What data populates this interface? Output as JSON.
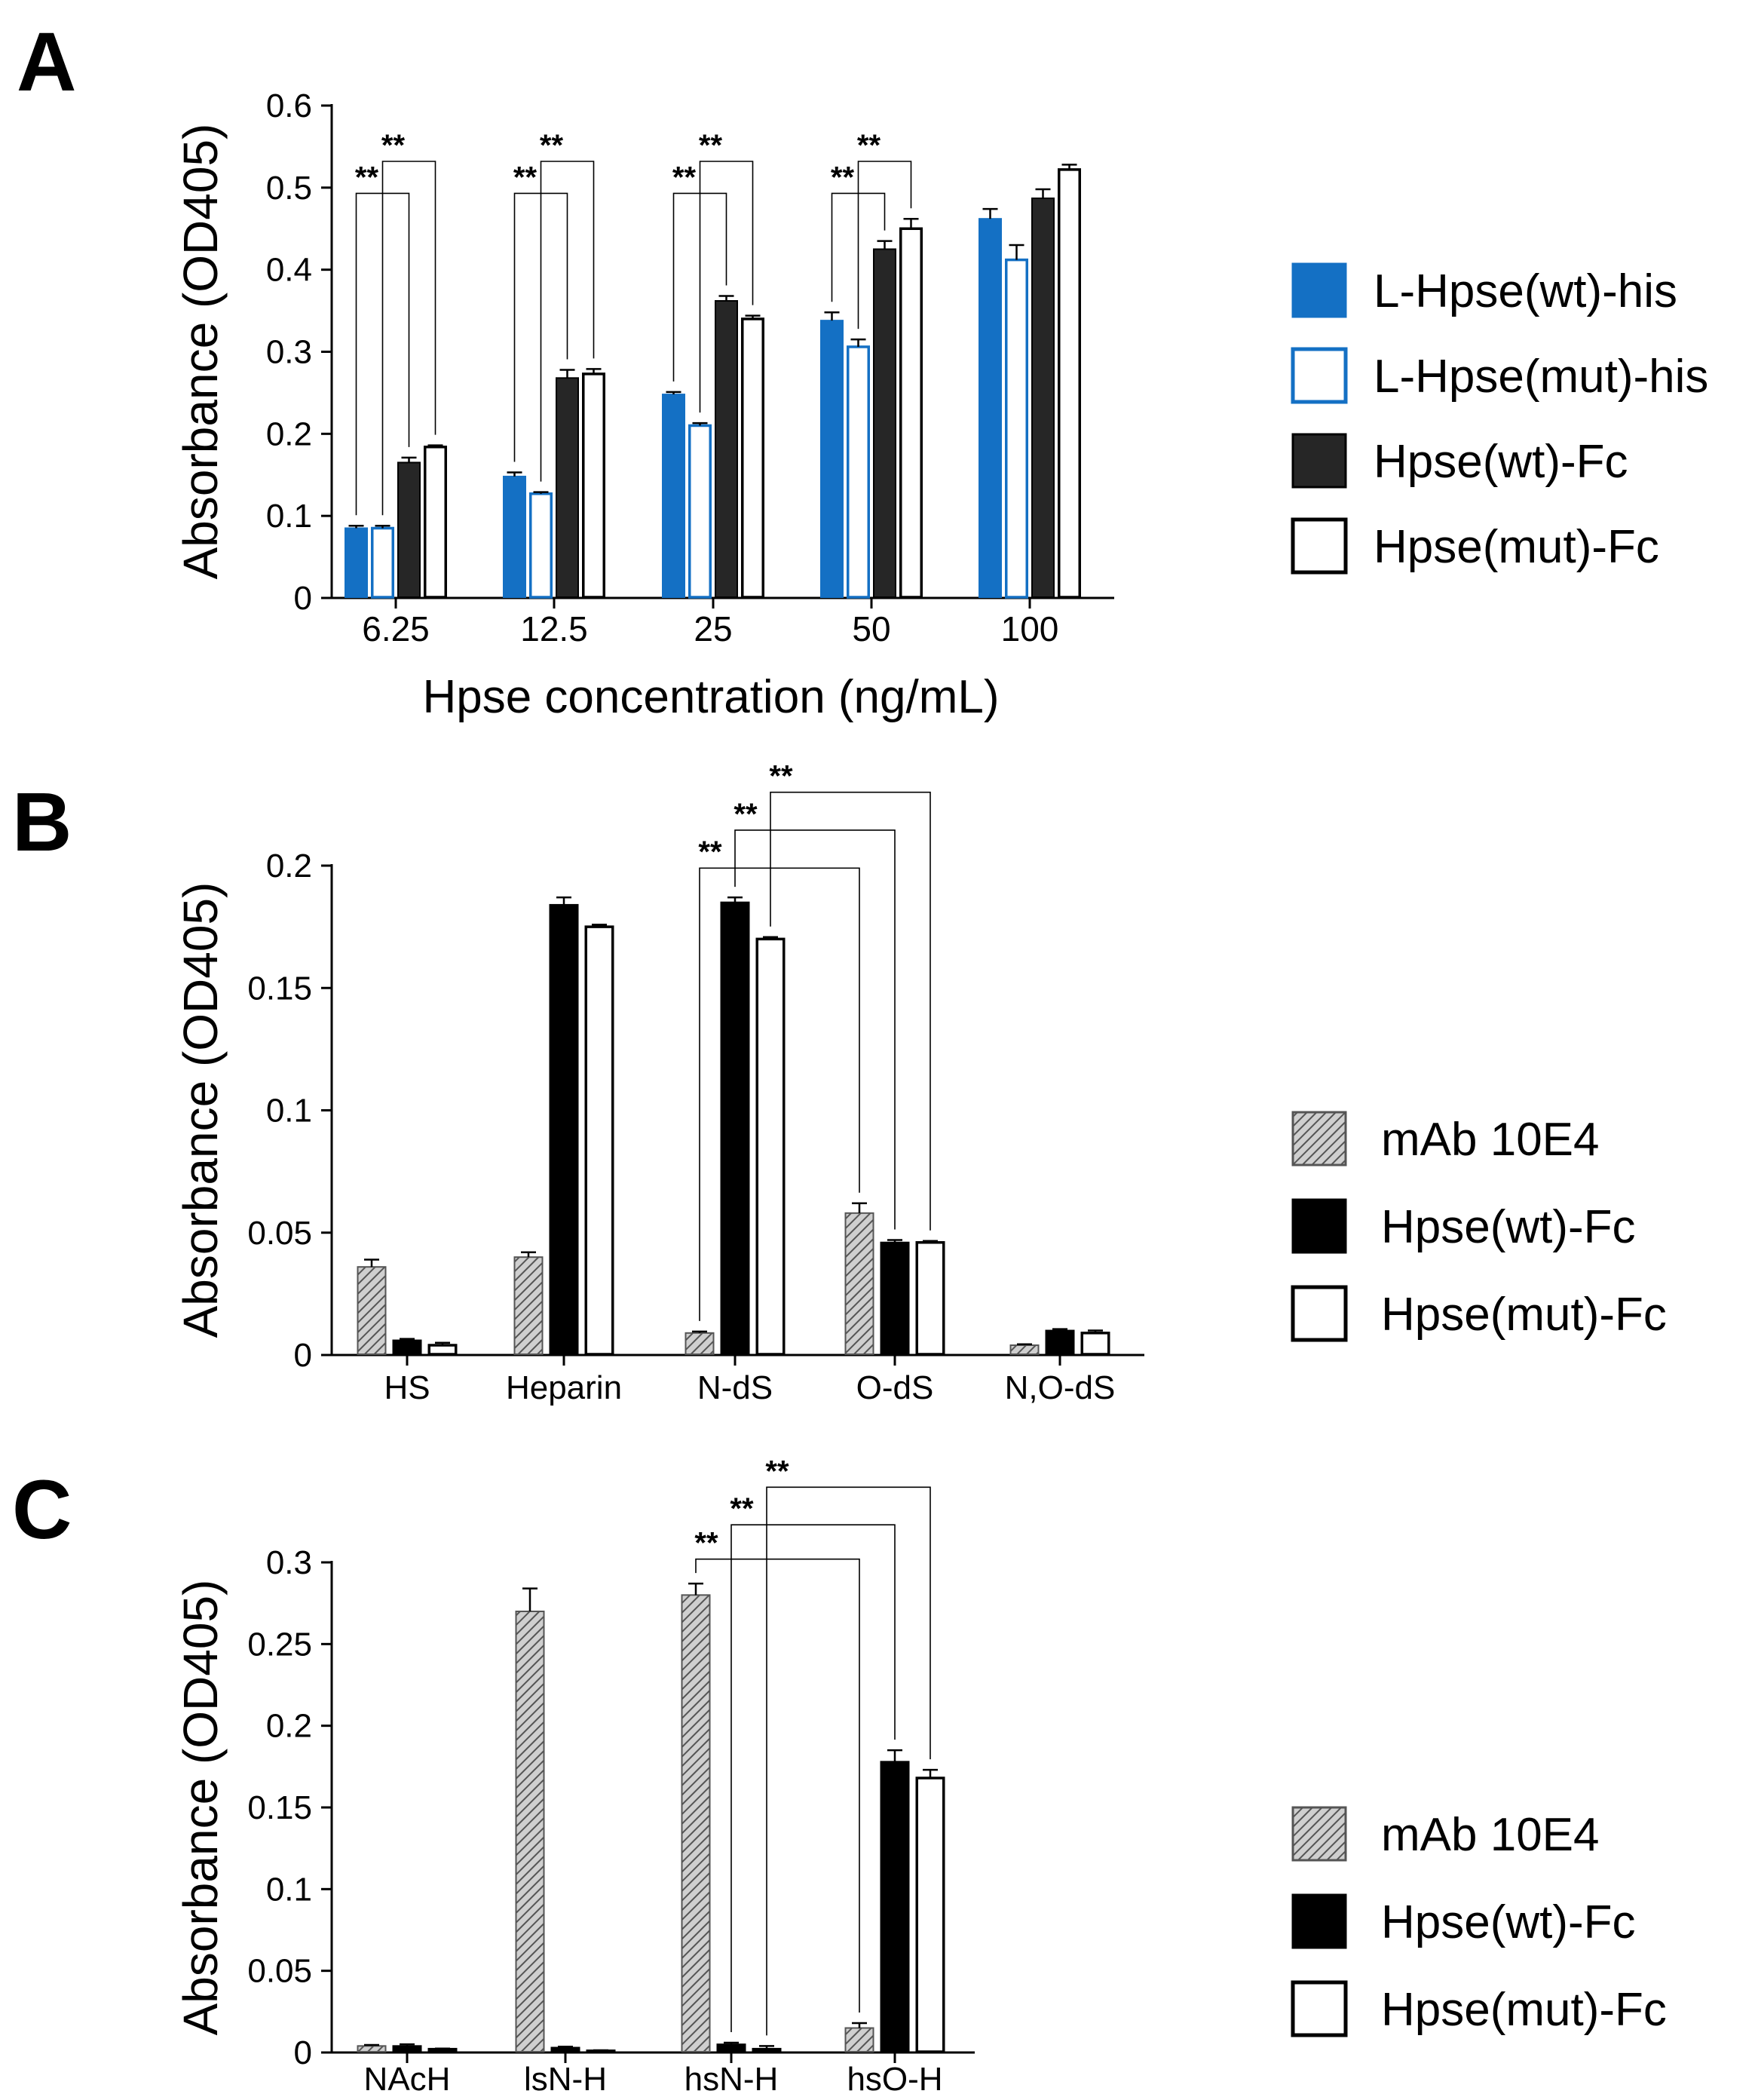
{
  "colors": {
    "blue": "#1470c4",
    "dark": "#262626",
    "black": "#000000",
    "white": "#ffffff",
    "hatch_bg": "#cfcfcf"
  },
  "chart_data": [
    {
      "panel": "A",
      "type": "bar",
      "title": "",
      "xlabel": "Hpse concentration (ng/mL)",
      "ylabel": "Absorbance (OD405)",
      "ylim": [
        0,
        0.6
      ],
      "yticks": [
        "0",
        "0.1",
        "0.2",
        "0.3",
        "0.4",
        "0.5",
        "0.6"
      ],
      "categories": [
        "6.25",
        "12.5",
        "25",
        "50",
        "100"
      ],
      "series": [
        {
          "name": "L-Hpse(wt)-his",
          "style": "blue",
          "values": [
            0.085,
            0.148,
            0.248,
            0.338,
            0.462
          ],
          "errors": [
            0.003,
            0.005,
            0.003,
            0.01,
            0.012
          ]
        },
        {
          "name": "L-Hpse(mut)-his",
          "style": "blue-outline",
          "values": [
            0.085,
            0.127,
            0.21,
            0.306,
            0.412
          ],
          "errors": [
            0.003,
            0.002,
            0.003,
            0.009,
            0.018
          ]
        },
        {
          "name": "Hpse(wt)-Fc",
          "style": "dark",
          "values": [
            0.165,
            0.268,
            0.362,
            0.425,
            0.487
          ],
          "errors": [
            0.006,
            0.01,
            0.006,
            0.01,
            0.011
          ]
        },
        {
          "name": "Hpse(mut)-Fc",
          "style": "white",
          "values": [
            0.184,
            0.273,
            0.34,
            0.45,
            0.522
          ],
          "errors": [
            0.002,
            0.006,
            0.004,
            0.012,
            0.006
          ]
        }
      ],
      "significance": [
        {
          "cat": 0,
          "from": 0,
          "to": 2,
          "label": "**",
          "level": 0.493
        },
        {
          "cat": 0,
          "from": 1,
          "to": 3,
          "label": "**",
          "level": 0.532
        },
        {
          "cat": 1,
          "from": 0,
          "to": 2,
          "label": "**",
          "level": 0.493
        },
        {
          "cat": 1,
          "from": 1,
          "to": 3,
          "label": "**",
          "level": 0.532
        },
        {
          "cat": 2,
          "from": 0,
          "to": 2,
          "label": "**",
          "level": 0.493
        },
        {
          "cat": 2,
          "from": 1,
          "to": 3,
          "label": "**",
          "level": 0.532
        },
        {
          "cat": 3,
          "from": 0,
          "to": 2,
          "label": "**",
          "level": 0.493
        },
        {
          "cat": 3,
          "from": 1,
          "to": 3,
          "label": "**",
          "level": 0.532
        }
      ]
    },
    {
      "panel": "B",
      "type": "bar",
      "title": "",
      "xlabel": "",
      "ylabel": "Absorbance (OD405)",
      "ylim": [
        0,
        0.2
      ],
      "yticks": [
        "0",
        "0.05",
        "0.1",
        "0.15",
        "0.2"
      ],
      "categories": [
        "HS",
        "Heparin",
        "N-dS",
        "O-dS",
        "N,O-dS"
      ],
      "series": [
        {
          "name": "mAb 10E4",
          "style": "hatch",
          "values": [
            0.036,
            0.04,
            0.009,
            0.058,
            0.004
          ],
          "errors": [
            0.003,
            0.002,
            0.0006,
            0.004,
            0.0004
          ]
        },
        {
          "name": "Hpse(wt)-Fc",
          "style": "black",
          "values": [
            0.006,
            0.184,
            0.185,
            0.046,
            0.01
          ],
          "errors": [
            0.0006,
            0.003,
            0.002,
            0.001,
            0.0006
          ]
        },
        {
          "name": "Hpse(mut)-Fc",
          "style": "white",
          "values": [
            0.004,
            0.175,
            0.17,
            0.046,
            0.009
          ],
          "errors": [
            0.001,
            0.0009,
            0.0008,
            0.0006,
            0.001
          ]
        }
      ],
      "significance": [
        {
          "from_cat": 2,
          "from_series": 0,
          "to_cat": 3,
          "to_series": 0,
          "label": "**",
          "level": 0.199
        },
        {
          "from_cat": 2,
          "from_series": 1,
          "to_cat": 3,
          "to_series": 1,
          "label": "**",
          "level": 0.2145
        },
        {
          "from_cat": 2,
          "from_series": 2,
          "to_cat": 3,
          "to_series": 2,
          "label": "**",
          "level": 0.23
        }
      ]
    },
    {
      "panel": "C",
      "type": "bar",
      "title": "",
      "xlabel": "",
      "ylabel": "Absorbance (OD405)",
      "ylim": [
        0,
        0.3
      ],
      "yticks": [
        "0",
        "0.05",
        "0.1",
        "0.15",
        "0.2",
        "0.25",
        "0.3"
      ],
      "categories": [
        "NAcH",
        "lsN-H",
        "hsN-H",
        "hsO-H"
      ],
      "series": [
        {
          "name": "mAb 10E4",
          "style": "hatch",
          "values": [
            0.004,
            0.27,
            0.28,
            0.015
          ],
          "errors": [
            0.0006,
            0.014,
            0.007,
            0.003
          ]
        },
        {
          "name": "Hpse(wt)-Fc",
          "style": "black",
          "values": [
            0.004,
            0.003,
            0.005,
            0.178
          ],
          "errors": [
            0.001,
            0.0006,
            0.001,
            0.007
          ]
        },
        {
          "name": "Hpse(mut)-Fc",
          "style": "white",
          "values": [
            0.002,
            0.001,
            0.002,
            0.168
          ],
          "errors": [
            0.0004,
            0.0004,
            0.002,
            0.005
          ]
        }
      ],
      "significance": [
        {
          "from_cat": 2,
          "from_series": 0,
          "to_cat": 3,
          "to_series": 0,
          "label": "**",
          "level": 0.302
        },
        {
          "from_cat": 2,
          "from_series": 1,
          "to_cat": 3,
          "to_series": 1,
          "label": "**",
          "level": 0.323
        },
        {
          "from_cat": 2,
          "from_series": 2,
          "to_cat": 3,
          "to_series": 2,
          "label": "**",
          "level": 0.346
        }
      ]
    }
  ],
  "panel_labels": [
    "A",
    "B",
    "C"
  ]
}
